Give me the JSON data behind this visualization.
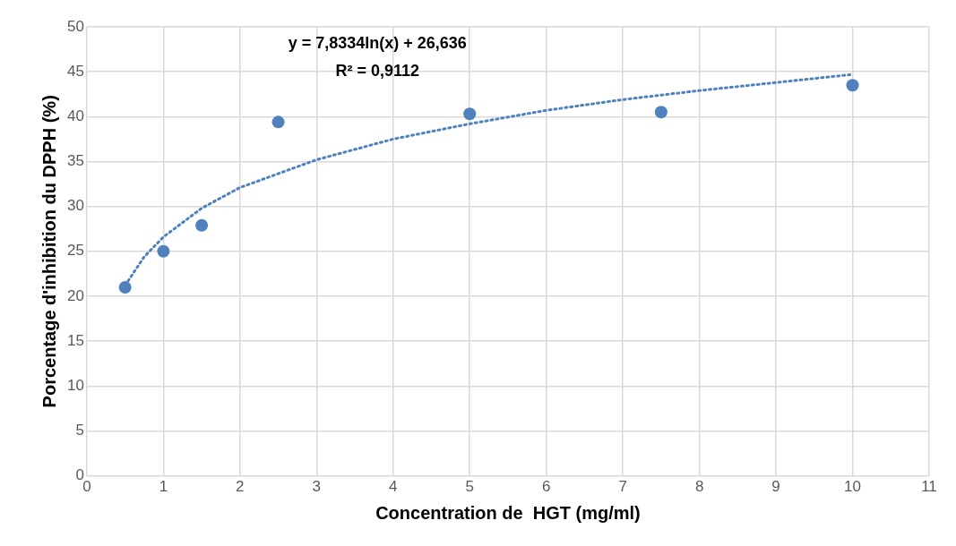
{
  "chart_data": {
    "type": "scatter",
    "xlabel": "Concentration de  HGT (mg/ml)",
    "ylabel": "Porcentage d'inhibition du DPPH (%)",
    "x": [
      0.5,
      1,
      1.5,
      2.5,
      5,
      7.5,
      10
    ],
    "series": [
      {
        "color": "#4f81bd",
        "values": [
          21,
          25,
          27.9,
          39.4,
          40.3,
          40.5,
          43.5
        ]
      },
      {
        "type": "line",
        "line_style": "dotted",
        "marker": "none",
        "color": "#4f81bd",
        "x": [
          0.5,
          0.75,
          1,
          1.5,
          2,
          3,
          4,
          5,
          6,
          7,
          8,
          9,
          10
        ],
        "values": [
          21.2,
          24.4,
          26.6,
          29.8,
          32.1,
          35.2,
          37.5,
          39.2,
          40.7,
          41.9,
          42.9,
          43.8,
          44.7
        ]
      }
    ],
    "annotations": [
      "y = 7,8334ln(x) + 26,636",
      "R² = 0,9112"
    ],
    "marker": "circle",
    "grid": true,
    "xlim": [
      0,
      11
    ],
    "xticks": [
      0,
      1,
      2,
      3,
      4,
      5,
      6,
      7,
      8,
      9,
      10,
      11
    ],
    "ylim": [
      0,
      50
    ],
    "yticks": [
      0,
      5,
      10,
      15,
      20,
      25,
      30,
      35,
      40,
      45,
      50
    ]
  }
}
